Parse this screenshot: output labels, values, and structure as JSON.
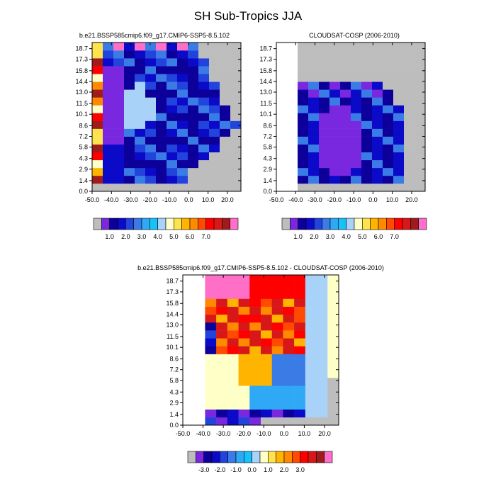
{
  "title": "SH Sub-Tropics JJA",
  "colors": {
    "missing": "#BDBDBD",
    "ramp": [
      "#7A28E0",
      "#0D009A",
      "#0A0AC8",
      "#2244DD",
      "#3A7BE6",
      "#2FA8F5",
      "#17C2F8",
      "#A8D2F8",
      "#FFFFC8",
      "#FFE34D",
      "#FFB500",
      "#FF8A00",
      "#FF4A00",
      "#FF0000",
      "#D81818",
      "#A01C1C",
      "#FF6EC7"
    ]
  },
  "chart_data": [
    {
      "type": "heatmap",
      "title": "b.e21.BSSP585cmip6.f09_g17.CMIP6-SSP5-8.5.102",
      "x_tick_labels": [
        "-50.0",
        "-40.0",
        "-30.0",
        "-20.0",
        "-10.0",
        "0.0",
        "10.0",
        "20.0"
      ],
      "y_tick_labels": [
        "0.0",
        "1.4",
        "2.9",
        "4.3",
        "5.8",
        "7.2",
        "8.6",
        "10.1",
        "11.5",
        "13.0",
        "14.4",
        "15.8",
        "17.3",
        "18.7"
      ],
      "xlim": [
        -50,
        27
      ],
      "ylim": [
        0,
        19.5
      ],
      "colorbar_labels": [
        "1.0",
        "2.0",
        "3.0",
        "4.0",
        "5.0",
        "6.0",
        "7.0"
      ]
    },
    {
      "type": "heatmap",
      "title": "CLOUDSAT-COSP (2006-2010)",
      "x_tick_labels": [
        "-50.0",
        "-40.0",
        "-30.0",
        "-20.0",
        "-10.0",
        "0.0",
        "10.0",
        "20.0"
      ],
      "y_tick_labels": [
        "0.0",
        "1.4",
        "2.9",
        "4.3",
        "5.8",
        "7.2",
        "8.6",
        "10.1",
        "11.5",
        "13.0",
        "14.4",
        "15.8",
        "17.3",
        "18.7"
      ],
      "xlim": [
        -50,
        27
      ],
      "ylim": [
        0,
        19.5
      ],
      "colorbar_labels": [
        "1.0",
        "2.0",
        "3.0",
        "4.0",
        "5.0",
        "6.0",
        "7.0"
      ]
    },
    {
      "type": "heatmap",
      "title": "b.e21.BSSP585cmip6.f09_g17.CMIP6-SSP5-8.5.102 - CLOUDSAT-COSP (2006-2010)",
      "x_tick_labels": [
        "-50.0",
        "-40.0",
        "-30.0",
        "-20.0",
        "-10.0",
        "0.0",
        "10.0",
        "20.0"
      ],
      "y_tick_labels": [
        "0.0",
        "1.4",
        "2.9",
        "4.3",
        "5.8",
        "7.2",
        "8.6",
        "10.1",
        "11.5",
        "13.0",
        "14.4",
        "15.8",
        "17.3",
        "18.7"
      ],
      "xlim": [
        -50,
        27
      ],
      "ylim": [
        0,
        19.5
      ],
      "colorbar_labels": [
        "-3.0",
        "-2.0",
        "-1.0",
        "0.0",
        "1.0",
        "2.0",
        "3.0"
      ]
    }
  ]
}
